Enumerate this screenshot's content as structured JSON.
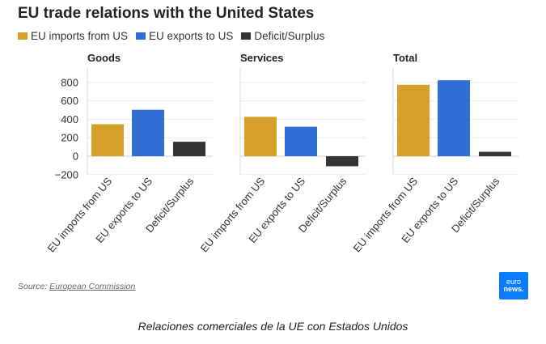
{
  "title": "EU trade relations with the United States",
  "legend": [
    {
      "label": "EU imports from US",
      "color": "#d4a02a"
    },
    {
      "label": "EU exports to US",
      "color": "#2f6fd6"
    },
    {
      "label": "Deficit/Surplus",
      "color": "#353535"
    }
  ],
  "source": {
    "prefix": "Source: ",
    "link": "European Commission"
  },
  "logo": {
    "line1": "euro",
    "line2": "news."
  },
  "caption": "Relaciones comerciales de la UE con Estados Unidos",
  "chart_data": {
    "type": "bar",
    "categories": [
      "EU imports from US",
      "EU exports to US",
      "Deficit/Surplus"
    ],
    "ylim": [
      -200,
      900
    ],
    "yticks": [
      -200,
      0,
      200,
      400,
      600,
      800
    ],
    "ytick_labels": [
      "−200",
      "0",
      "200",
      "400",
      "600",
      "800"
    ],
    "grid": true,
    "colors": [
      "#d4a02a",
      "#2f6fd6",
      "#353535"
    ],
    "panels": [
      {
        "name": "Goods",
        "values": [
          347,
          503,
          157
        ]
      },
      {
        "name": "Services",
        "values": [
          427,
          319,
          -109
        ]
      },
      {
        "name": "Total",
        "values": [
          774,
          823,
          48
        ]
      }
    ]
  }
}
